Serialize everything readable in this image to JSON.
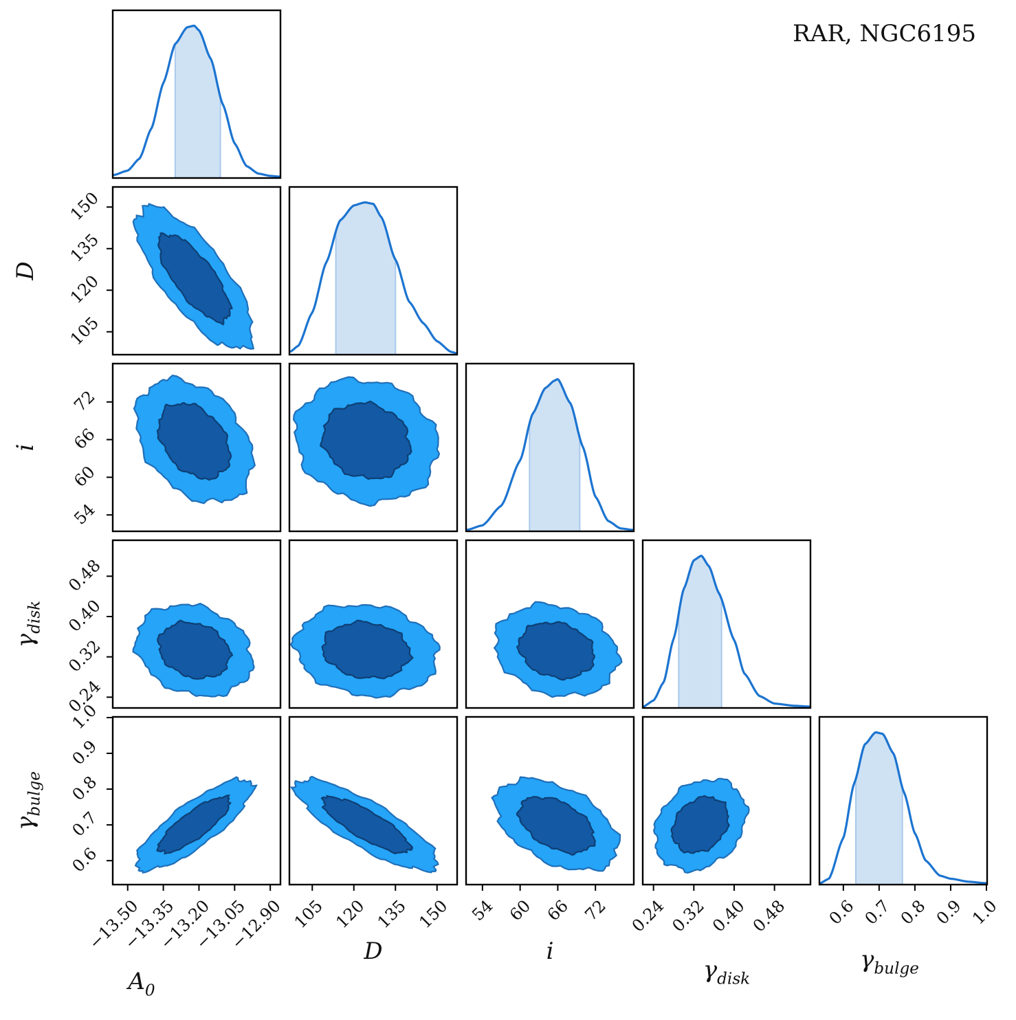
{
  "figure": {
    "label": "RAR, NGC6195",
    "label_color": "#1f77d4"
  },
  "colors": {
    "line": "#1c74d0",
    "band": "#cfe2f4",
    "band_edge": "#a9c9ec",
    "contour_outer": "#25a4f8",
    "contour_inner": "#1459a3",
    "contour_edge": "#1f6fb8",
    "frame": "#000000"
  },
  "chart_data": {
    "type": "corner",
    "parameters": [
      {
        "key": "A0",
        "base": "A",
        "sub": "0",
        "range": [
          -13.56,
          -12.86
        ],
        "ticks": [
          -13.5,
          -13.35,
          -13.2,
          -13.05,
          -12.9
        ],
        "tick_labels": [
          "−13.50",
          "−13.35",
          "−13.20",
          "−13.05",
          "−12.90"
        ],
        "mean": -13.22,
        "sd": 0.1,
        "band": [
          -13.3,
          -13.11
        ]
      },
      {
        "key": "D",
        "base": "D",
        "sub": "",
        "range": [
          97,
          157
        ],
        "ticks": [
          105,
          120,
          135,
          150
        ],
        "tick_labels": [
          "105",
          "120",
          "135",
          "150"
        ],
        "mean": 124.5,
        "sd": 10.5,
        "band": [
          113.5,
          135.0
        ]
      },
      {
        "key": "i",
        "base": "i",
        "sub": "",
        "range": [
          51.5,
          78
        ],
        "ticks": [
          54,
          60,
          66,
          72
        ],
        "tick_labels": [
          "54",
          "60",
          "66",
          "72"
        ],
        "mean": 65.8,
        "sd": 4.0,
        "band": [
          61.5,
          69.5
        ]
      },
      {
        "key": "gamma_disk",
        "base": "γ",
        "sub": "disk",
        "range": [
          0.22,
          0.55
        ],
        "ticks": [
          0.24,
          0.32,
          0.4,
          0.48
        ],
        "tick_labels": [
          "0.24",
          "0.32",
          "0.40",
          "0.48"
        ],
        "mean": 0.333,
        "sd": 0.037,
        "band": [
          0.29,
          0.375
        ]
      },
      {
        "key": "gamma_bulge",
        "base": "γ",
        "sub": "bulge",
        "range": [
          0.535,
          1.0
        ],
        "ticks": [
          0.6,
          0.7,
          0.8,
          0.9,
          1.0
        ],
        "tick_labels": [
          "0.6",
          "0.7",
          "0.8",
          "0.9",
          "1.0"
        ],
        "mean": 0.7,
        "sd": 0.052,
        "band": [
          0.635,
          0.765
        ]
      }
    ],
    "marginals": [
      {
        "param": "A0",
        "x": [
          -13.56,
          -13.5,
          -13.45,
          -13.4,
          -13.35,
          -13.3,
          -13.25,
          -13.22,
          -13.2,
          -13.15,
          -13.1,
          -13.05,
          -13.0,
          -12.95,
          -12.9,
          -12.86
        ],
        "density": [
          0.01,
          0.04,
          0.12,
          0.32,
          0.62,
          0.88,
          0.99,
          1.0,
          0.97,
          0.78,
          0.48,
          0.22,
          0.07,
          0.02,
          0.005,
          0.0
        ]
      },
      {
        "param": "D",
        "x": [
          97,
          100,
          105,
          110,
          115,
          120,
          124,
          127,
          130,
          135,
          140,
          145,
          150,
          155,
          157
        ],
        "density": [
          0.01,
          0.05,
          0.27,
          0.6,
          0.88,
          0.98,
          1.0,
          0.99,
          0.9,
          0.62,
          0.34,
          0.2,
          0.08,
          0.01,
          0.0
        ]
      },
      {
        "param": "i",
        "x": [
          51.5,
          54,
          57,
          60,
          62,
          64,
          65.5,
          66,
          68,
          70,
          72,
          74,
          76,
          78
        ],
        "density": [
          0.0,
          0.03,
          0.16,
          0.46,
          0.77,
          0.94,
          0.99,
          1.0,
          0.84,
          0.55,
          0.22,
          0.06,
          0.01,
          0.0
        ],
        "peak_note": ""
      },
      {
        "param": "gamma_disk",
        "x": [
          0.22,
          0.24,
          0.26,
          0.28,
          0.3,
          0.32,
          0.335,
          0.35,
          0.37,
          0.4,
          0.42,
          0.45,
          0.48,
          0.52,
          0.55
        ],
        "density": [
          0.0,
          0.04,
          0.16,
          0.45,
          0.78,
          0.97,
          1.0,
          0.93,
          0.75,
          0.44,
          0.22,
          0.07,
          0.02,
          0.005,
          0.0
        ]
      },
      {
        "param": "gamma_bulge",
        "x": [
          0.535,
          0.56,
          0.6,
          0.63,
          0.66,
          0.69,
          0.71,
          0.74,
          0.77,
          0.8,
          0.83,
          0.87,
          0.9,
          0.95,
          1.0
        ],
        "density": [
          0.0,
          0.03,
          0.3,
          0.66,
          0.92,
          1.0,
          0.99,
          0.86,
          0.6,
          0.33,
          0.15,
          0.05,
          0.03,
          0.01,
          0.0
        ]
      }
    ],
    "correlations": {
      "D|A0": -0.75,
      "i|A0": -0.35,
      "i|D": -0.12,
      "gamma_disk|A0": -0.2,
      "gamma_disk|D": -0.12,
      "gamma_disk|i": -0.18,
      "gamma_bulge|A0": 0.82,
      "gamma_bulge|D": -0.82,
      "gamma_bulge|i": -0.45,
      "gamma_bulge|gamma_disk": 0.25
    },
    "contour_levels": [
      "1-sigma (inner, dark)",
      "2-sigma (outer, light)"
    ]
  }
}
